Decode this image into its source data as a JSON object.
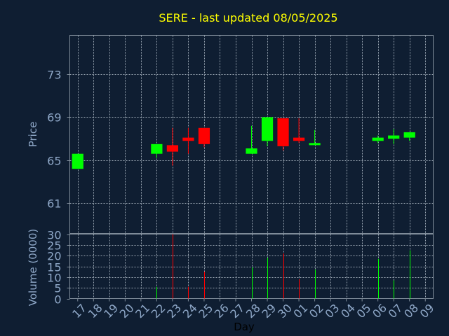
{
  "title": "SERE - last updated 08/05/2025",
  "colors": {
    "background": "#0f1e32",
    "frame": "#7f8c99",
    "grid": "#9aa6b3",
    "title": "#ffff00",
    "ticks": "#8fa8c8",
    "xlabel": "#000000",
    "up": "#00ff00",
    "down": "#ff0000"
  },
  "chart_data": [
    {
      "type": "candlestick",
      "ylabel": "Price",
      "ylim": [
        58.2,
        76.6
      ],
      "yticks": [
        61,
        65,
        69,
        73
      ],
      "grid": true,
      "categories": [
        "17",
        "18",
        "19",
        "20",
        "21",
        "22",
        "23",
        "24",
        "25",
        "26",
        "27",
        "28",
        "29",
        "30",
        "01",
        "02",
        "03",
        "04",
        "05",
        "06",
        "07",
        "08",
        "09"
      ],
      "candles": [
        {
          "day": "17",
          "open": 64.2,
          "close": 65.6,
          "high": 65.6,
          "low": 64.2
        },
        {
          "day": "22",
          "open": 65.6,
          "close": 66.5,
          "high": 66.5,
          "low": 65.2
        },
        {
          "day": "23",
          "open": 66.4,
          "close": 65.8,
          "high": 68.0,
          "low": 64.5
        },
        {
          "day": "24",
          "open": 67.1,
          "close": 66.8,
          "high": 68.0,
          "low": 65.6
        },
        {
          "day": "25",
          "open": 68.0,
          "close": 66.5,
          "high": 68.0,
          "low": 66.2
        },
        {
          "day": "28",
          "open": 65.6,
          "close": 66.1,
          "high": 68.2,
          "low": 65.6
        },
        {
          "day": "29",
          "open": 66.8,
          "close": 69.0,
          "high": 69.0,
          "low": 66.3
        },
        {
          "day": "30",
          "open": 68.9,
          "close": 66.3,
          "high": 68.9,
          "low": 65.9
        },
        {
          "day": "01",
          "open": 67.1,
          "close": 66.8,
          "high": 68.9,
          "low": 66.6
        },
        {
          "day": "02",
          "open": 66.4,
          "close": 66.6,
          "high": 67.8,
          "low": 66.4
        },
        {
          "day": "06",
          "open": 66.8,
          "close": 67.1,
          "high": 67.3,
          "low": 66.6
        },
        {
          "day": "07",
          "open": 67.0,
          "close": 67.3,
          "high": 67.9,
          "low": 66.5
        },
        {
          "day": "08",
          "open": 67.1,
          "close": 67.6,
          "high": 67.6,
          "low": 66.8
        }
      ]
    },
    {
      "type": "bar",
      "ylabel": "Volume (0000)",
      "xlabel": "Day",
      "ylim": [
        0,
        30
      ],
      "yticks": [
        0,
        5,
        10,
        15,
        20,
        25,
        30
      ],
      "grid": true,
      "categories": [
        "17",
        "18",
        "19",
        "20",
        "21",
        "22",
        "23",
        "24",
        "25",
        "26",
        "27",
        "28",
        "29",
        "30",
        "01",
        "02",
        "03",
        "04",
        "05",
        "06",
        "07",
        "08",
        "09"
      ],
      "bars": [
        {
          "day": "22",
          "value": 5.5,
          "direction": "up"
        },
        {
          "day": "23",
          "value": 30,
          "direction": "down"
        },
        {
          "day": "24",
          "value": 5.5,
          "direction": "down"
        },
        {
          "day": "25",
          "value": 12.5,
          "direction": "down"
        },
        {
          "day": "28",
          "value": 14.5,
          "direction": "up"
        },
        {
          "day": "29",
          "value": 19,
          "direction": "up"
        },
        {
          "day": "30",
          "value": 21,
          "direction": "down"
        },
        {
          "day": "01",
          "value": 9,
          "direction": "down"
        },
        {
          "day": "02",
          "value": 13.5,
          "direction": "up"
        },
        {
          "day": "06",
          "value": 18.5,
          "direction": "up"
        },
        {
          "day": "07",
          "value": 8.5,
          "direction": "up"
        },
        {
          "day": "08",
          "value": 22.5,
          "direction": "up"
        }
      ]
    }
  ]
}
